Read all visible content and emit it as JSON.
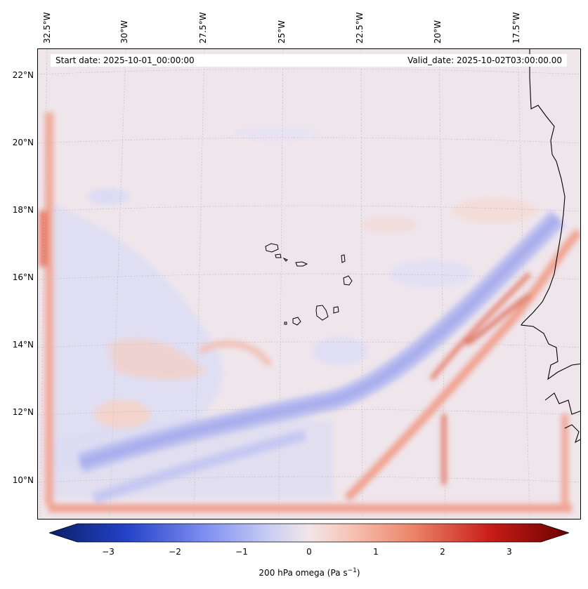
{
  "map": {
    "start_date": "Start date: 2025-10-01_00:00:00",
    "valid_date": "Valid_date: 2025-10-02T03:00:00.00",
    "lon_labels": [
      "32.5°W",
      "30°W",
      "27.5°W",
      "25°W",
      "22.5°W",
      "20°W",
      "17.5°W"
    ],
    "lat_labels": [
      "22°N",
      "20°N",
      "18°N",
      "16°N",
      "14°N",
      "12°N",
      "10°N"
    ],
    "field": "200 hPa omega",
    "colormap": "coolwarm / RdBu_r",
    "colors": {
      "negative_strong": "#0b1e6a",
      "negative": "#3f5bd6",
      "neutral": "#f2e6e8",
      "positive": "#e0553e",
      "positive_strong": "#6a0000",
      "coastline": "#000000"
    }
  },
  "colorbar": {
    "ticks": [
      "−3",
      "−2",
      "−1",
      "0",
      "1",
      "2",
      "3"
    ],
    "tick_values": [
      -3,
      -2,
      -1,
      0,
      1,
      2,
      3
    ],
    "range": [
      -3.6,
      3.6
    ],
    "label": "200 hPa omega (Pa s",
    "label_sup": "−1",
    "label_end": ")"
  }
}
